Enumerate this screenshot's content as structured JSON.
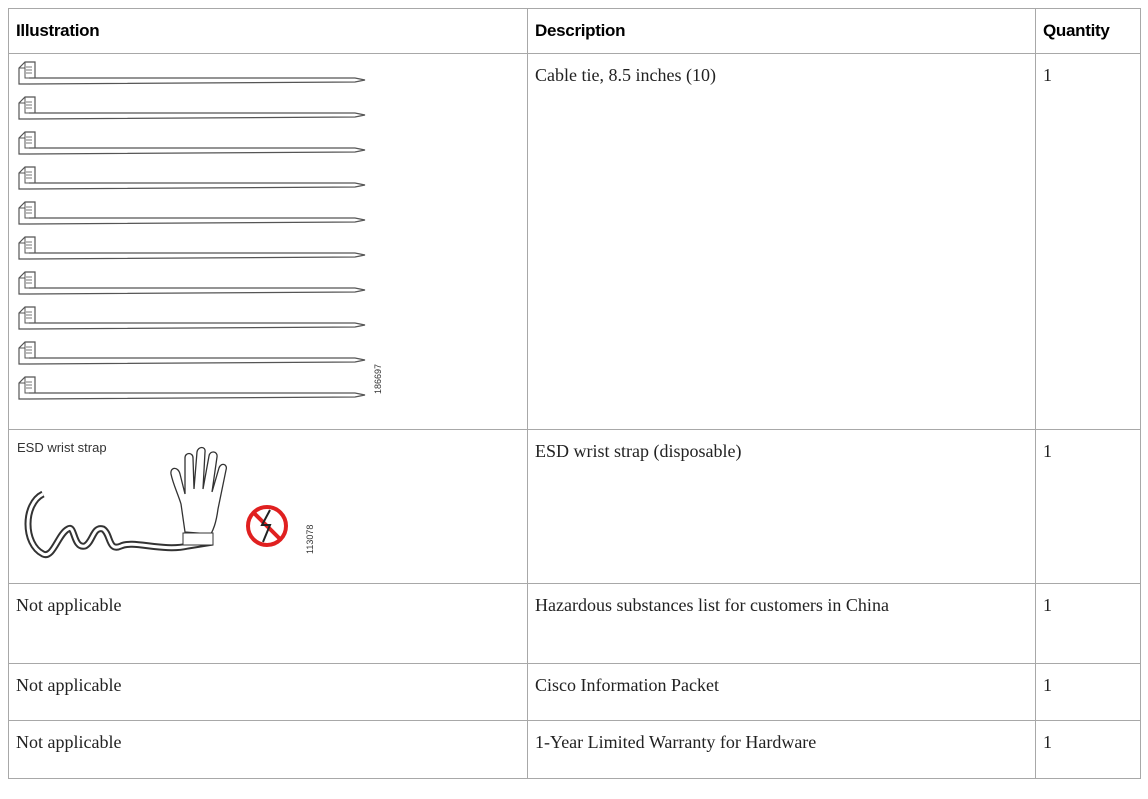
{
  "table": {
    "columns": [
      "Illustration",
      "Description",
      "Quantity"
    ],
    "rows": [
      {
        "illustration": {
          "figure_id": "186697"
        },
        "description": "Cable tie, 8.5 inches (10)",
        "quantity": 1
      },
      {
        "illustration": {
          "caption": "ESD wrist strap",
          "figure_id": "113078"
        },
        "description": "ESD wrist strap (disposable)",
        "quantity": 1
      },
      {
        "illustration": "Not applicable",
        "description": "Hazardous substances list for customers in China",
        "quantity": 1
      },
      {
        "illustration": "Not applicable",
        "description": "Cisco Information Packet",
        "quantity": 1
      },
      {
        "illustration": "Not applicable",
        "description": "1-Year Limited Warranty for Hardware",
        "quantity": 1
      }
    ]
  }
}
